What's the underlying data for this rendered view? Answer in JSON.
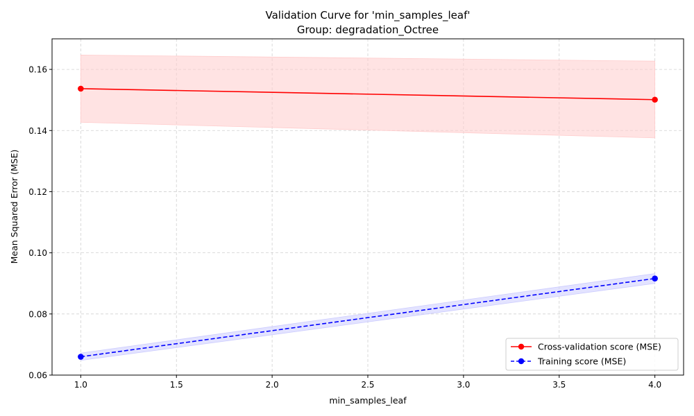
{
  "chart_data": {
    "type": "line",
    "title": "Validation Curve for 'min_samples_leaf'",
    "subtitle": "Group: degradation_Octree",
    "xlabel": "min_samples_leaf",
    "ylabel": "Mean Squared Error (MSE)",
    "xlim": [
      0.85,
      4.15
    ],
    "ylim": [
      0.06,
      0.17
    ],
    "xticks": [
      "1.0",
      "1.5",
      "2.0",
      "2.5",
      "3.0",
      "3.5",
      "4.0"
    ],
    "yticks": [
      "0.06",
      "0.08",
      "0.10",
      "0.12",
      "0.14",
      "0.16"
    ],
    "grid": true,
    "legend_position": "lower-right",
    "x": [
      1.0,
      4.0
    ],
    "series": [
      {
        "name": "Cross-validation score (MSE)",
        "values": [
          0.1537,
          0.1501
        ],
        "band_upper": [
          0.1647,
          0.1627
        ],
        "band_lower": [
          0.1427,
          0.1376
        ],
        "color": "#ff0000",
        "band_color": "#ffcccc",
        "dash": "solid",
        "marker": "circle"
      },
      {
        "name": "Training score (MSE)",
        "values": [
          0.066,
          0.0916
        ],
        "band_upper": [
          0.0672,
          0.0932
        ],
        "band_lower": [
          0.0648,
          0.09
        ],
        "color": "#0000ff",
        "band_color": "#ccccff",
        "dash": "dashed",
        "marker": "circle"
      }
    ]
  }
}
